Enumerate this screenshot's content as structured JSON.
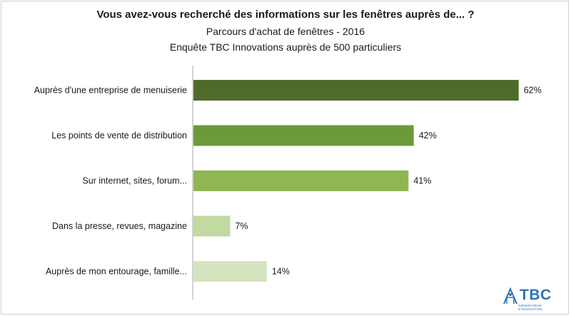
{
  "chart_data": {
    "type": "bar",
    "orientation": "horizontal",
    "title": "Vous avez-vous recherché des informations sur les fenêtres auprès de... ?",
    "subtitle_1": "Parcours d'achat de fenêtres - 2016",
    "subtitle_2": "Enquête TBC Innovations auprès de 500 particuliers",
    "categories": [
      "Auprès d'une entreprise de menuiserie",
      "Les points de vente de distribution",
      "Sur internet, sites, forum...",
      "Dans la presse, revues, magazine",
      "Auprès de mon entourage, famille..."
    ],
    "values": [
      62,
      42,
      41,
      7,
      14
    ],
    "value_labels": [
      "62%",
      "42%",
      "41%",
      "7%",
      "14%"
    ],
    "colors": [
      "#4f6b2c",
      "#6b9a3a",
      "#8fb653",
      "#c3d9a2",
      "#d5e3bf"
    ],
    "xlim": [
      0,
      70
    ],
    "grid": false,
    "legend": "none"
  },
  "logo": {
    "name": "tbc-logo",
    "text": "TBC",
    "tagline": "GÉNÉRATEUR D'INNOVATION"
  }
}
